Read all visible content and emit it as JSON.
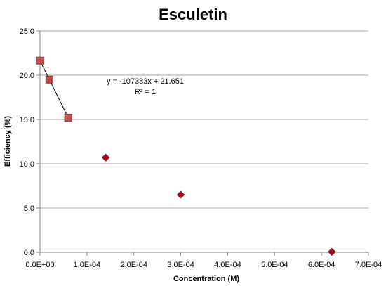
{
  "chart_data": {
    "type": "scatter",
    "title": "Esculetin",
    "xlabel": "Concentration (M)",
    "ylabel": "Efficiency (%)",
    "xlim": [
      0,
      0.0007
    ],
    "ylim": [
      0,
      25
    ],
    "x_ticks": [
      0,
      0.0001,
      0.0002,
      0.0003,
      0.0004,
      0.0005,
      0.0006,
      0.0007
    ],
    "x_tick_labels": [
      "0.0E+00",
      "1.0E-04",
      "2.0E-04",
      "3.0E-04",
      "4.0E-04",
      "5.0E-04",
      "6.0E-04",
      "7.0E-04"
    ],
    "y_ticks": [
      0,
      5,
      10,
      15,
      20,
      25
    ],
    "y_tick_labels": [
      "0.0",
      "5.0",
      "10.0",
      "15.0",
      "20.0",
      "25.0"
    ],
    "grid": "horizontal",
    "legend": "none",
    "series": [
      {
        "marker": "square",
        "color": "#c0504d",
        "x": [
          0.0,
          2e-05,
          6e-05
        ],
        "y": [
          21.65,
          19.5,
          15.2
        ]
      },
      {
        "marker": "diamond",
        "color": "#c00000",
        "x": [
          0.00014,
          0.0003,
          0.000622
        ],
        "y": [
          10.7,
          6.5,
          0.05
        ]
      }
    ],
    "trendline": {
      "slope": -107383,
      "intercept": 21.651,
      "x_range": [
        0,
        6e-05
      ],
      "equation": "y = -107383x + 21.651",
      "r2": "R² = 1"
    }
  }
}
